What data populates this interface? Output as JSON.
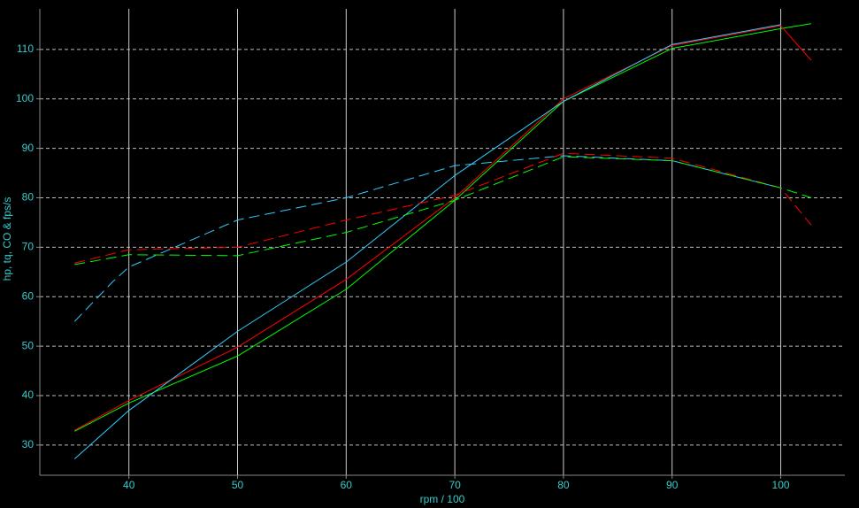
{
  "chart_data": {
    "type": "line",
    "xlabel": "rpm / 100",
    "ylabel": "hp, tq, CO & fps/s",
    "xlim": [
      31.8,
      105.9
    ],
    "xticks": [
      40,
      50,
      60,
      70,
      80,
      90,
      100
    ],
    "ylim": [
      23.9,
      118.2
    ],
    "yticks": [
      30,
      40,
      50,
      60,
      70,
      80,
      90,
      100,
      110
    ],
    "grid": true,
    "series": [
      {
        "color": "#00ff00",
        "linestyle": "solid",
        "x": [
          35,
          40,
          50,
          60,
          70,
          80,
          90,
          100,
          102.8
        ],
        "values": [
          32.8,
          38.5,
          48,
          61.5,
          79.5,
          99.5,
          110.2,
          114.2,
          115.2
        ]
      },
      {
        "color": "#ff0000",
        "linestyle": "solid",
        "x": [
          35,
          40,
          50,
          60,
          70,
          80,
          90,
          100,
          102.8
        ],
        "values": [
          33,
          39,
          49.8,
          63.5,
          80,
          100,
          110.8,
          114.8,
          107.8
        ]
      },
      {
        "color": "#33ccff",
        "linestyle": "solid",
        "x": [
          35,
          40,
          50,
          60,
          70,
          80,
          90,
          100
        ],
        "values": [
          27.2,
          37,
          53,
          67,
          84.5,
          99.5,
          111,
          115
        ]
      },
      {
        "color": "#33ccff",
        "linestyle": "dashed",
        "x": [
          35,
          38.5,
          40,
          50,
          60,
          70,
          80,
          90,
          100
        ],
        "values": [
          55,
          63,
          66,
          75.5,
          80,
          86.5,
          88.5,
          87.5,
          82
        ]
      },
      {
        "color": "#ff0000",
        "linestyle": "dashed",
        "x": [
          35,
          40,
          50,
          60,
          70,
          80,
          90,
          100,
          102.8
        ],
        "values": [
          66.8,
          69.5,
          70,
          75.5,
          80.5,
          89,
          88,
          82,
          74.5
        ]
      },
      {
        "color": "#00ff00",
        "linestyle": "dashed",
        "x": [
          35,
          40,
          50,
          60,
          70,
          80,
          90,
          100,
          102.8
        ],
        "values": [
          66.5,
          68.5,
          68.3,
          73,
          79.5,
          88.3,
          87.5,
          82,
          80
        ]
      }
    ]
  }
}
